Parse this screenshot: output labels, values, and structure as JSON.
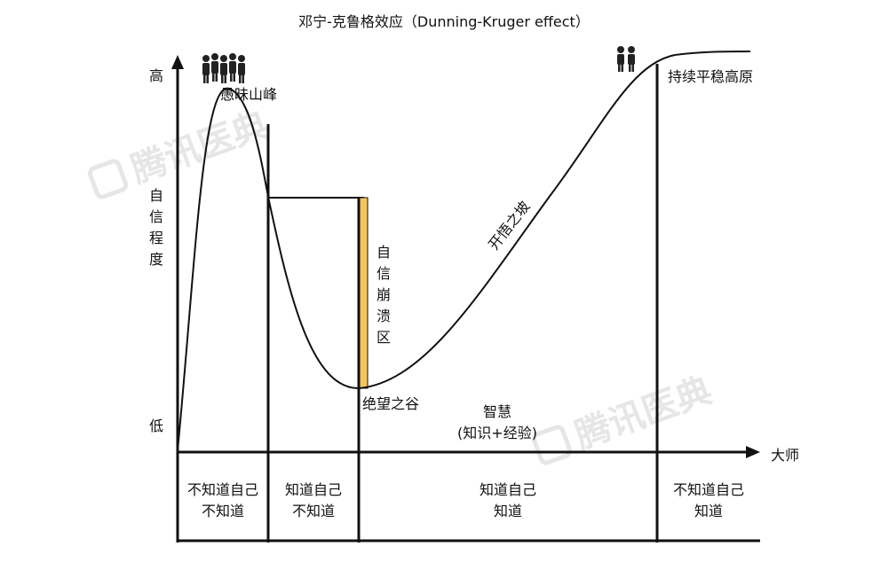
{
  "title": "邓宁-克鲁格效应（Dunning-Kruger effect）",
  "y_axis": {
    "high": "高",
    "low": "低",
    "label_chars": [
      "自",
      "信",
      "程",
      "度"
    ]
  },
  "x_axis": {
    "end_label": "大师"
  },
  "curve_labels": {
    "peak": "愚昧山峰",
    "valley": "绝望之谷",
    "slope": "开悟之坡",
    "plateau": "持续平稳高原",
    "collapse_chars": [
      "自",
      "信",
      "崩",
      "溃",
      "区"
    ],
    "wisdom": "智慧",
    "wisdom_sub": "(知识+经验)"
  },
  "stages": [
    {
      "line1": "不知道自己",
      "line2": "不知道"
    },
    {
      "line1": "知道自己",
      "line2": "不知道"
    },
    {
      "line1": "知道自己",
      "line2": "知道"
    },
    {
      "line1": "不知道自己",
      "line2": "知道"
    }
  ],
  "watermark": "腾讯医典",
  "colors": {
    "collapse_bar": "#f7c55f",
    "ink": "#111111",
    "watermark": "#e6e6e6"
  },
  "icons": [
    "crowd-icon",
    "pair-people-icon"
  ]
}
